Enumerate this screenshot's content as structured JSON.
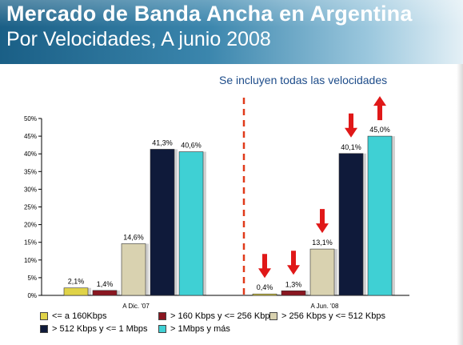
{
  "header": {
    "title": "Mercado de Banda Ancha en Argentina",
    "subtitle": "Por Velocidades, A junio 2008"
  },
  "note": "Se incluyen todas las velocidades",
  "colors": {
    "c1": "#e0d348",
    "c2": "#8a1620",
    "c3": "#d9d2b0",
    "c4": "#0f1a3a",
    "c5": "#3fd0d4",
    "arrow": "#e01818",
    "divider": "#e03a1a"
  },
  "chart_data": {
    "type": "bar",
    "categories": [
      "A Dic. '07",
      "A Jun. '08"
    ],
    "ylim": [
      0,
      50
    ],
    "yticks": [
      "0%",
      "5%",
      "10%",
      "15%",
      "20%",
      "25%",
      "30%",
      "35%",
      "40%",
      "45%",
      "50%"
    ],
    "grid": false,
    "legend_position": "bottom",
    "series": [
      {
        "name": "<= a 160Kbps",
        "values": [
          2.1,
          0.4
        ],
        "labels": [
          "2,1%",
          "0,4%"
        ],
        "color": "#e0d348",
        "trend": [
          "",
          "down"
        ]
      },
      {
        "name": "> 160 Kbps y <= 256 Kbps",
        "values": [
          1.4,
          1.3
        ],
        "labels": [
          "1,4%",
          "1,3%"
        ],
        "color": "#8a1620",
        "trend": [
          "",
          "down"
        ]
      },
      {
        "name": "> 256 Kbps y <= 512 Kbps",
        "values": [
          14.6,
          13.1
        ],
        "labels": [
          "14,6%",
          "13,1%"
        ],
        "color": "#d9d2b0",
        "trend": [
          "",
          "down"
        ]
      },
      {
        "name": "> 512 Kbps y <= 1 Mbps",
        "values": [
          41.3,
          40.1
        ],
        "labels": [
          "41,3%",
          "40,1%"
        ],
        "color": "#0f1a3a",
        "trend": [
          "",
          "down"
        ]
      },
      {
        "name": "> 1Mbps y más",
        "values": [
          40.6,
          45.0
        ],
        "labels": [
          "40,6%",
          "45,0%"
        ],
        "color": "#3fd0d4",
        "trend": [
          "",
          "up"
        ]
      }
    ]
  }
}
